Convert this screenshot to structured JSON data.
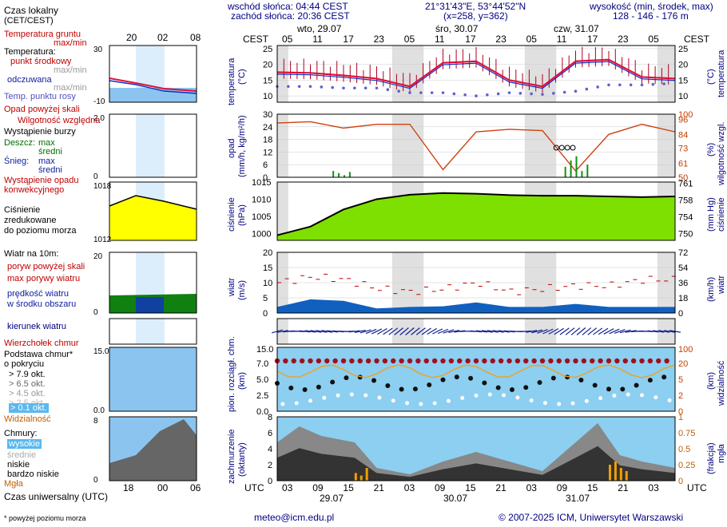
{
  "header": {
    "sunrise": "wschód słońca: 04:44 CEST",
    "sunset": "zachód słońca: 20:36 CEST",
    "coords": "21°31'43\"E, 53°44'52\"N",
    "grid": "(x=258, y=362)",
    "elevation_title": "wysokość (min, środek, max)",
    "elevation_values": "128 - 146 - 176 m",
    "cest_left": "CEST",
    "cest_right": "CEST",
    "utc_left": "UTC",
    "utc_right": "UTC",
    "days_top": [
      "wto, 29.07",
      "śro, 30.07",
      "czw, 31.07"
    ],
    "days_bottom": [
      "29.07",
      "30.07",
      "31.07"
    ],
    "cest_ticks": [
      "05",
      "11",
      "17",
      "23",
      "05",
      "11",
      "17",
      "23",
      "05",
      "11",
      "17",
      "23",
      "05"
    ],
    "utc_ticks": [
      "03",
      "09",
      "15",
      "21",
      "03",
      "09",
      "15",
      "21",
      "03",
      "09",
      "15",
      "21",
      "03"
    ]
  },
  "legend": {
    "time_local": "Czas lokalny",
    "time_local2": "(CET/CEST)",
    "mini_cest_ticks": [
      "20",
      "02",
      "08"
    ],
    "mini_utc_ticks": [
      "18",
      "00",
      "06"
    ],
    "time_utc": "Czas uniwersalny (UTC)",
    "soil_temp": "Temperatura gruntu",
    "soil_temp2": "max/min",
    "temperature": "Temperatura:",
    "mid_point": "punkt środkowy",
    "max_min": "max/min",
    "feels": "odczuwana",
    "feels_mm": "max/min",
    "dew": "Temp. punktu rosy",
    "rain_over": "Opad powyżej skali",
    "humidity": "Wilgotność względna",
    "storm": "Wystąpienie burzy",
    "rain": "Deszcz:",
    "max": "max",
    "mean": "średni",
    "snow": "Śnieg:",
    "precip_occ": "Wystąpienie opadu",
    "precip_occ2": "konwekcyjnego",
    "pressure": "Ciśnienie",
    "pressure2": "zredukowane",
    "pressure3": "do poziomu morza",
    "wind_at": "Wiatr na 10m:",
    "gust_over": "poryw powyżej skali",
    "gust_max": "max porywy wiatru",
    "wind_speed": "prędkość wiatru",
    "wind_speed2": "w środku obszaru",
    "wind_dir": "kierunek wiatru",
    "cloud_top": "Wierzchołek chmur",
    "cloud_base": "Podstawa chmur*",
    "cloud_base2": "o pokryciu",
    "okt": [
      "> 7.9 okt.",
      "> 6.5 okt.",
      "> 4.5 okt.",
      "> 2.5 okt.",
      "> 0.1 okt."
    ],
    "visibility": "Widzialność",
    "clouds": "Chmury:",
    "cl_high": "wysokie",
    "cl_mid": "średnie",
    "cl_low": "niskie",
    "cl_vlow": "bardzo niskie",
    "fog": "Mgła",
    "footnote": "* powyżej poziomu morza"
  },
  "axes": {
    "temp_label": "temperatura",
    "temp_unit": "(°C)",
    "precip_label": "opad",
    "precip_unit": "(mm/h, kg/m²/h)",
    "hum_label": "wilgotność wzgl.",
    "hum_unit": "(%)",
    "press_label": "ciśnienie",
    "press_unit": "(hPa)",
    "press_unit_r": "(mm Hg)",
    "wind_label": "wiatr",
    "wind_unit": "(m/s)",
    "wind_unit_r": "(km/h)",
    "cloud_label": "pion. rozciągł. chm.",
    "cloud_unit": "(km)",
    "vis_label": "widzialność",
    "vis_unit": "(km)",
    "cover_label": "zachmurzenie",
    "cover_unit": "(oktanty)",
    "fog_label": "mgła",
    "fog_unit": "(frakcja)"
  },
  "footer": {
    "email": "meteo@icm.edu.pl",
    "copyright": "© 2007-2025 ICM, Uniwersytet Warszawski"
  },
  "colors": {
    "temp": "#e0103a",
    "dew": "#6060d0",
    "humidity": "#d04010",
    "pressure_fill": "#7ee000",
    "wind_fill": "#1060c0",
    "wind_fill_green": "#108010",
    "gust": "#c00000",
    "night_band": "#e0e0e0",
    "sky": "#8ccff0"
  },
  "chart_data": [
    {
      "type": "line",
      "title": "temperatura",
      "ylabel": "(°C)",
      "ylim": [
        8,
        26
      ],
      "yticks": [
        10,
        15,
        20,
        25
      ],
      "x_hours_from_start": [
        0,
        6,
        12,
        18,
        24,
        30,
        36,
        42,
        48,
        54,
        60,
        66,
        72
      ],
      "series": [
        {
          "name": "punkt środkowy",
          "values": [
            17.5,
            17.3,
            16.5,
            15.5,
            13,
            20.5,
            21,
            15,
            13,
            21,
            21.5,
            16,
            15.5
          ]
        },
        {
          "name": "Temp. punktu rosy",
          "values": [
            13,
            13,
            12.5,
            12.5,
            11,
            11,
            10,
            11,
            10.5,
            11.5,
            13.5,
            13.5,
            14
          ]
        }
      ]
    },
    {
      "type": "line",
      "title": "wilgotność wzgl.",
      "ylabel": "(%)",
      "ylim": [
        50,
        100
      ],
      "yticks": [
        50,
        61,
        73,
        84,
        96
      ],
      "x_hours_from_start": [
        0,
        6,
        12,
        18,
        24,
        30,
        36,
        42,
        48,
        54,
        60,
        66,
        72
      ],
      "series": [
        {
          "name": "Wilgotność względna",
          "values": [
            93,
            94,
            89,
            92,
            92,
            56,
            86,
            88,
            87,
            55,
            84,
            92,
            86
          ]
        }
      ]
    },
    {
      "type": "area",
      "title": "ciśnienie",
      "ylabel": "(hPa)",
      "ylim": [
        998,
        1015
      ],
      "yticks": [
        1000,
        1005,
        1010,
        1015
      ],
      "x_hours_from_start": [
        0,
        6,
        12,
        18,
        24,
        30,
        36,
        42,
        48,
        54,
        60,
        66,
        72
      ],
      "values": [
        999.5,
        1002,
        1007,
        1010,
        1011.3,
        1011.8,
        1011.6,
        1011.2,
        1011,
        1011,
        1010.8,
        1010.6,
        1010.8
      ]
    },
    {
      "type": "area",
      "title": "wiatr",
      "ylabel": "(m/s)",
      "ylim": [
        0,
        20
      ],
      "yticks": [
        0,
        5,
        10,
        15,
        20
      ],
      "x_hours_from_start": [
        0,
        6,
        12,
        18,
        24,
        30,
        36,
        42,
        48,
        54,
        60,
        66,
        72
      ],
      "series": [
        {
          "name": "prędkość wiatru",
          "values": [
            2,
            4.5,
            4,
            1.5,
            2,
            2.2,
            3.5,
            2,
            2,
            3,
            2,
            2,
            2
          ]
        },
        {
          "name": "max porywy wiatru",
          "values": [
            10,
            12,
            11,
            8,
            7,
            8,
            10,
            7,
            8,
            9,
            9,
            11,
            11
          ]
        }
      ]
    }
  ]
}
